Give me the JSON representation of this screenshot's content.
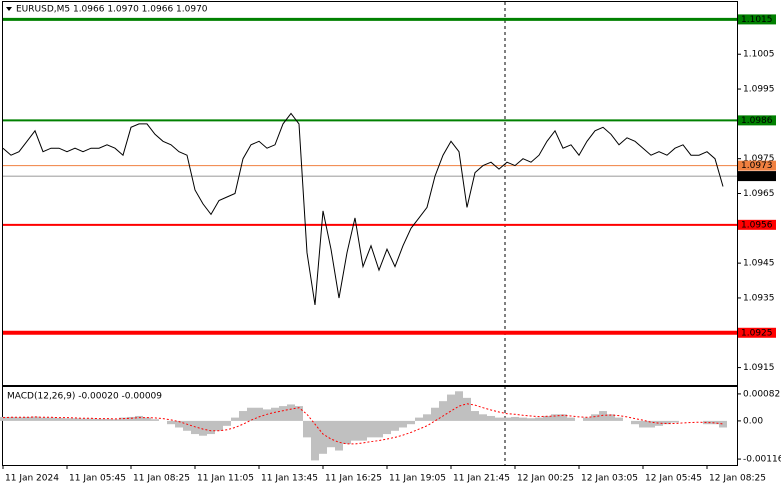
{
  "chart_data": [
    {
      "type": "line",
      "title": "EURUSD,M5  1.0966 1.0970 1.0966 1.0970",
      "color": "#000000",
      "xlim": [
        0,
        91.75
      ],
      "ylim": [
        1.091,
        1.102
      ],
      "xticks": [
        {
          "value": 0,
          "label": "11 Jan 2024"
        },
        {
          "value": 8,
          "label": "11 Jan 05:45"
        },
        {
          "value": 16,
          "label": "11 Jan 08:25"
        },
        {
          "value": 24,
          "label": "11 Jan 11:05"
        },
        {
          "value": 32,
          "label": "11 Jan 13:45"
        },
        {
          "value": 40,
          "label": "11 Jan 16:25"
        },
        {
          "value": 48,
          "label": "11 Jan 19:05"
        },
        {
          "value": 56,
          "label": "11 Jan 21:45"
        },
        {
          "value": 64,
          "label": "12 Jan 00:25"
        },
        {
          "value": 72,
          "label": "12 Jan 03:05"
        },
        {
          "value": 80,
          "label": "12 Jan 05:45"
        },
        {
          "value": 88,
          "label": "12 Jan 08:25"
        }
      ],
      "yticks": [
        1.1005,
        1.0995,
        1.0975,
        1.0965,
        1.0945,
        1.0935,
        1.0915
      ],
      "levels": [
        {
          "value": 1.1015,
          "color": "#008000",
          "width": 3
        },
        {
          "value": 1.0986,
          "color": "#008000",
          "width": 2
        },
        {
          "value": 1.0973,
          "color": "#f08040",
          "width": 1
        },
        {
          "value": 1.097,
          "label": "1.0970",
          "color": "#000000",
          "width": 0.4
        },
        {
          "value": 1.0956,
          "color": "#ff0000",
          "width": 2
        },
        {
          "value": 1.0925,
          "color": "#ff0000",
          "width": 4
        }
      ],
      "values": [
        1.0978,
        1.0976,
        1.0977,
        1.098,
        1.0983,
        1.0977,
        1.0978,
        1.0978,
        1.0977,
        1.0978,
        1.0977,
        1.0978,
        1.0978,
        1.0979,
        1.0978,
        1.0976,
        1.0984,
        1.0985,
        1.0985,
        1.0982,
        1.098,
        1.0979,
        1.0977,
        1.0976,
        1.0966,
        1.0962,
        1.0959,
        1.0963,
        1.0964,
        1.0965,
        1.0975,
        1.0979,
        1.098,
        1.0978,
        1.0979,
        1.0985,
        1.0988,
        1.0985,
        1.0948,
        1.0933,
        1.096,
        1.0949,
        1.0935,
        1.0948,
        1.0958,
        1.0944,
        1.095,
        1.0943,
        1.0949,
        1.0944,
        1.095,
        1.0955,
        1.0958,
        1.0961,
        1.097,
        1.0976,
        1.098,
        1.0977,
        1.0961,
        1.0971,
        1.0973,
        1.0974,
        1.0972,
        1.0974,
        1.0973,
        1.0975,
        1.0974,
        1.0976,
        1.098,
        1.0983,
        1.0978,
        1.0979,
        1.0976,
        1.098,
        1.0983,
        1.0984,
        1.0982,
        1.0979,
        1.0981,
        1.098,
        1.0978,
        1.0976,
        1.0977,
        1.0976,
        1.0978,
        1.0979,
        1.0976,
        1.0976,
        1.0977,
        1.0975,
        1.0967
      ]
    },
    {
      "type": "macd",
      "title": "MACD(12,26,9) -0.00020 -0.00009",
      "xlim": [
        0,
        91.75
      ],
      "ylim": [
        -0.00134,
        0.00103
      ],
      "yticks": [
        0.00082,
        {
          "value": 0,
          "label": "0.00"
        },
        -0.00116
      ],
      "series": [
        {
          "type": "bar",
          "color": "#c0c0c0",
          "values": [
            0.00012,
            0.00012,
            0.00011,
            0.00012,
            0.00013,
            0.0001,
            0.0001,
            9e-05,
            8e-05,
            8e-05,
            7e-05,
            7e-05,
            6e-05,
            6e-05,
            5e-05,
            0.0001,
            0.00012,
            0.00015,
            0.0001,
            5e-05,
            0,
            -0.0001,
            -0.0002,
            -0.0003,
            -0.0004,
            -0.00045,
            -0.0004,
            -0.0003,
            -0.00015,
            0.0001,
            0.0003,
            0.0004,
            0.0004,
            0.00035,
            0.0004,
            0.00045,
            0.0005,
            0.00045,
            -0.0005,
            -0.0012,
            -0.001,
            -0.0008,
            -0.0009,
            -0.0007,
            -0.0006,
            -0.0006,
            -0.0005,
            -0.0005,
            -0.0004,
            -0.0003,
            -0.0002,
            -0.0001,
            0.0001,
            0.0002,
            0.0004,
            0.0006,
            0.0008,
            0.0009,
            0.0007,
            0.0003,
            0.0002,
            0.00015,
            0.0001,
            0.0001,
            0.00012,
            0.0001,
            8e-05,
            0.0001,
            0.00015,
            0.0002,
            0.0002,
            0.0001,
            0,
            0.0001,
            0.0002,
            0.0003,
            0.0002,
            0.0001,
            0,
            -0.0001,
            -0.0002,
            -0.0002,
            -0.00015,
            -0.0001,
            -5e-05,
            0,
            0,
            0,
            -0.0001,
            -0.0001,
            -0.0002
          ]
        },
        {
          "type": "line",
          "color": "#ff0000",
          "dashed": true,
          "values": [
            0.0001,
            0.00011,
            0.00011,
            0.00011,
            0.00012,
            0.00011,
            0.00011,
            0.0001,
            0.0001,
            9e-05,
            8e-05,
            8e-05,
            7e-05,
            7e-05,
            6e-05,
            7e-05,
            8e-05,
            0.0001,
            0.0001,
            9e-05,
            7e-05,
            3e-05,
            -2e-05,
            -0.0001,
            -0.00018,
            -0.00025,
            -0.0003,
            -0.0003,
            -0.00027,
            -0.0002,
            -0.0001,
            2e-05,
            0.00012,
            0.0002,
            0.00026,
            0.00031,
            0.00036,
            0.0004,
            0.0002,
            -0.0001,
            -0.0004,
            -0.00055,
            -0.00065,
            -0.0007,
            -0.0007,
            -0.00067,
            -0.00063,
            -0.0006,
            -0.00055,
            -0.0005,
            -0.00043,
            -0.00035,
            -0.00025,
            -0.00015,
            0,
            0.00015,
            0.0003,
            0.00045,
            0.00052,
            0.00048,
            0.0004,
            0.00033,
            0.00027,
            0.00022,
            0.0002,
            0.00017,
            0.00015,
            0.00013,
            0.00014,
            0.00015,
            0.00017,
            0.00015,
            0.00012,
            0.00011,
            0.00013,
            0.00017,
            0.00018,
            0.00016,
            0.00012,
            7e-05,
            2e-05,
            -4e-05,
            -7e-05,
            -8e-05,
            -8e-05,
            -6e-05,
            -5e-05,
            -4e-05,
            -5e-05,
            -6e-05,
            -9e-05
          ]
        }
      ]
    }
  ]
}
